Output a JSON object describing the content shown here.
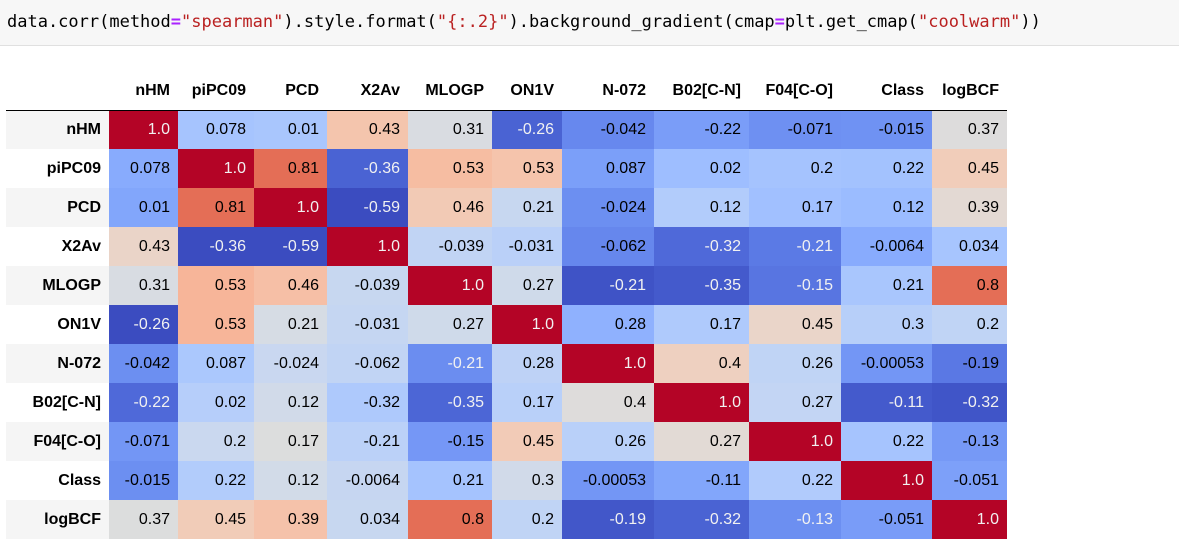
{
  "code_cell": {
    "code": "data.corr(method=\"spearman\").style.format(\"{:.2}\").background_gradient(cmap=plt.get_cmap(\"coolwarm\"))"
  },
  "table": {
    "columns": [
      "nHM",
      "piPC09",
      "PCD",
      "X2Av",
      "MLOGP",
      "ON1V",
      "N-072",
      "B02[C-N]",
      "F04[C-O]",
      "Class",
      "logBCF"
    ],
    "rows": [
      {
        "label": "nHM",
        "cells": [
          {
            "text": "1.0",
            "bg": "#b40426",
            "light": true
          },
          {
            "text": "0.078",
            "bg": "#a6c4fe",
            "light": false
          },
          {
            "text": "0.01",
            "bg": "#a9c6fd",
            "light": false
          },
          {
            "text": "0.43",
            "bg": "#f4c5ad",
            "light": false
          },
          {
            "text": "0.31",
            "bg": "#d9dce1",
            "light": false
          },
          {
            "text": "-0.26",
            "bg": "#4a63d3",
            "light": true
          },
          {
            "text": "-0.042",
            "bg": "#6788ee",
            "light": false
          },
          {
            "text": "-0.22",
            "bg": "#7a9df8",
            "light": false
          },
          {
            "text": "-0.071",
            "bg": "#6e90f2",
            "light": false
          },
          {
            "text": "-0.015",
            "bg": "#6f92f3",
            "light": false
          },
          {
            "text": "0.37",
            "bg": "#dddcdc",
            "light": false
          }
        ]
      },
      {
        "label": "piPC09",
        "cells": [
          {
            "text": "0.078",
            "bg": "#88abfd",
            "light": false
          },
          {
            "text": "1.0",
            "bg": "#b40426",
            "light": true
          },
          {
            "text": "0.81",
            "bg": "#e46e56",
            "light": false
          },
          {
            "text": "-0.36",
            "bg": "#4a63d3",
            "light": true
          },
          {
            "text": "0.53",
            "bg": "#f6bda2",
            "light": false
          },
          {
            "text": "0.53",
            "bg": "#f5c4ac",
            "light": false
          },
          {
            "text": "0.087",
            "bg": "#7b9ff9",
            "light": false
          },
          {
            "text": "0.02",
            "bg": "#9ebeff",
            "light": false
          },
          {
            "text": "0.2",
            "bg": "#a5c3fe",
            "light": false
          },
          {
            "text": "0.22",
            "bg": "#a3c2fe",
            "light": false
          },
          {
            "text": "0.45",
            "bg": "#f1cdba",
            "light": false
          }
        ]
      },
      {
        "label": "PCD",
        "cells": [
          {
            "text": "0.01",
            "bg": "#82a6fb",
            "light": false
          },
          {
            "text": "0.81",
            "bg": "#e46e56",
            "light": false
          },
          {
            "text": "1.0",
            "bg": "#b40426",
            "light": true
          },
          {
            "text": "-0.59",
            "bg": "#3b4cc0",
            "light": true
          },
          {
            "text": "0.46",
            "bg": "#f2cab5",
            "light": false
          },
          {
            "text": "0.21",
            "bg": "#c7d7f0",
            "light": false
          },
          {
            "text": "-0.024",
            "bg": "#6c8ff1",
            "light": false
          },
          {
            "text": "0.12",
            "bg": "#b2ccfb",
            "light": false
          },
          {
            "text": "0.17",
            "bg": "#a1c0ff",
            "light": false
          },
          {
            "text": "0.12",
            "bg": "#9bbcff",
            "light": false
          },
          {
            "text": "0.39",
            "bg": "#e3d9d3",
            "light": false
          }
        ]
      },
      {
        "label": "X2Av",
        "cells": [
          {
            "text": "0.43",
            "bg": "#ead4c8",
            "light": false
          },
          {
            "text": "-0.36",
            "bg": "#3b4cc0",
            "light": true
          },
          {
            "text": "-0.59",
            "bg": "#3b4cc0",
            "light": true
          },
          {
            "text": "1.0",
            "bg": "#b40426",
            "light": true
          },
          {
            "text": "-0.039",
            "bg": "#c1d4f4",
            "light": false
          },
          {
            "text": "-0.031",
            "bg": "#bad0f8",
            "light": false
          },
          {
            "text": "-0.062",
            "bg": "#6687ed",
            "light": false
          },
          {
            "text": "-0.32",
            "bg": "#4f69d9",
            "light": true
          },
          {
            "text": "-0.21",
            "bg": "#5b7ae5",
            "light": true
          },
          {
            "text": "-0.0064",
            "bg": "#88abfd",
            "light": false
          },
          {
            "text": "0.034",
            "bg": "#a7c5fe",
            "light": false
          }
        ]
      },
      {
        "label": "MLOGP",
        "cells": [
          {
            "text": "0.31",
            "bg": "#d8dce2",
            "light": false
          },
          {
            "text": "0.53",
            "bg": "#f7b599",
            "light": false
          },
          {
            "text": "0.46",
            "bg": "#f6bfa6",
            "light": false
          },
          {
            "text": "-0.039",
            "bg": "#c7d7f0",
            "light": false
          },
          {
            "text": "1.0",
            "bg": "#b40426",
            "light": true
          },
          {
            "text": "0.27",
            "bg": "#cfdaea",
            "light": false
          },
          {
            "text": "-0.21",
            "bg": "#3f53c6",
            "light": true
          },
          {
            "text": "-0.35",
            "bg": "#445acc",
            "light": true
          },
          {
            "text": "-0.15",
            "bg": "#5875e1",
            "light": true
          },
          {
            "text": "0.21",
            "bg": "#a9c6fd",
            "light": false
          },
          {
            "text": "0.8",
            "bg": "#e46e56",
            "light": false
          }
        ]
      },
      {
        "label": "ON1V",
        "cells": [
          {
            "text": "-0.26",
            "bg": "#3b4cc0",
            "light": true
          },
          {
            "text": "0.53",
            "bg": "#f7b599",
            "light": false
          },
          {
            "text": "0.21",
            "bg": "#d6dce4",
            "light": false
          },
          {
            "text": "-0.031",
            "bg": "#c5d6f2",
            "light": false
          },
          {
            "text": "0.27",
            "bg": "#cfdaea",
            "light": false
          },
          {
            "text": "1.0",
            "bg": "#b40426",
            "light": true
          },
          {
            "text": "0.28",
            "bg": "#8fb1fe",
            "light": false
          },
          {
            "text": "0.17",
            "bg": "#afcafc",
            "light": false
          },
          {
            "text": "0.45",
            "bg": "#ead5c9",
            "light": false
          },
          {
            "text": "0.3",
            "bg": "#b7cff9",
            "light": false
          },
          {
            "text": "0.2",
            "bg": "#c0d4f5",
            "light": false
          }
        ]
      },
      {
        "label": "N-072",
        "cells": [
          {
            "text": "-0.042",
            "bg": "#6c8ff1",
            "light": false
          },
          {
            "text": "0.087",
            "bg": "#abc8fd",
            "light": false
          },
          {
            "text": "-0.024",
            "bg": "#c9d7f0",
            "light": false
          },
          {
            "text": "-0.062",
            "bg": "#c1d4f4",
            "light": false
          },
          {
            "text": "-0.21",
            "bg": "#6b8df0",
            "light": true
          },
          {
            "text": "0.28",
            "bg": "#bed2f6",
            "light": false
          },
          {
            "text": "1.0",
            "bg": "#b40426",
            "light": true
          },
          {
            "text": "0.4",
            "bg": "#eed0c0",
            "light": false
          },
          {
            "text": "0.26",
            "bg": "#c0d4f5",
            "light": false
          },
          {
            "text": "-0.00053",
            "bg": "#7396f5",
            "light": false
          },
          {
            "text": "-0.19",
            "bg": "#5a78e4",
            "light": false
          }
        ]
      },
      {
        "label": "B02[C-N]",
        "cells": [
          {
            "text": "-0.22",
            "bg": "#4f69d9",
            "light": true
          },
          {
            "text": "0.02",
            "bg": "#b6cefa",
            "light": false
          },
          {
            "text": "0.12",
            "bg": "#d1dae9",
            "light": false
          },
          {
            "text": "-0.32",
            "bg": "#aec9fc",
            "light": false
          },
          {
            "text": "-0.35",
            "bg": "#4c66d6",
            "light": true
          },
          {
            "text": "0.17",
            "bg": "#b9d0f9",
            "light": false
          },
          {
            "text": "0.4",
            "bg": "#dedcdb",
            "light": false
          },
          {
            "text": "1.0",
            "bg": "#b40426",
            "light": true
          },
          {
            "text": "0.27",
            "bg": "#c3d5f4",
            "light": false
          },
          {
            "text": "-0.11",
            "bg": "#445acc",
            "light": true
          },
          {
            "text": "-0.32",
            "bg": "#4055c8",
            "light": true
          }
        ]
      },
      {
        "label": "F04[C-O]",
        "cells": [
          {
            "text": "-0.071",
            "bg": "#7396f5",
            "light": false
          },
          {
            "text": "0.2",
            "bg": "#cad8ef",
            "light": false
          },
          {
            "text": "0.17",
            "bg": "#dcdddd",
            "light": false
          },
          {
            "text": "-0.21",
            "bg": "#bbd1f8",
            "light": false
          },
          {
            "text": "-0.15",
            "bg": "#7597f6",
            "light": false
          },
          {
            "text": "0.45",
            "bg": "#f2cbb7",
            "light": false
          },
          {
            "text": "0.26",
            "bg": "#b9d0f9",
            "light": false
          },
          {
            "text": "0.27",
            "bg": "#e2dad5",
            "light": false
          },
          {
            "text": "1.0",
            "bg": "#b40426",
            "light": true
          },
          {
            "text": "0.22",
            "bg": "#a6c4fe",
            "light": false
          },
          {
            "text": "-0.13",
            "bg": "#7699f6",
            "light": false
          }
        ]
      },
      {
        "label": "Class",
        "cells": [
          {
            "text": "-0.015",
            "bg": "#6c8ff1",
            "light": false
          },
          {
            "text": "0.22",
            "bg": "#b2ccfb",
            "light": false
          },
          {
            "text": "0.12",
            "bg": "#d2dbe8",
            "light": false
          },
          {
            "text": "-0.0064",
            "bg": "#c6d6f1",
            "light": false
          },
          {
            "text": "0.21",
            "bg": "#a5c3fe",
            "light": false
          },
          {
            "text": "0.3",
            "bg": "#d1dae9",
            "light": false
          },
          {
            "text": "-0.00053",
            "bg": "#7396f5",
            "light": false
          },
          {
            "text": "-0.11",
            "bg": "#82a6fb",
            "light": false
          },
          {
            "text": "0.22",
            "bg": "#b1cbfc",
            "light": false
          },
          {
            "text": "1.0",
            "bg": "#b40426",
            "light": true
          },
          {
            "text": "-0.051",
            "bg": "#7da0f9",
            "light": false
          }
        ]
      },
      {
        "label": "logBCF",
        "cells": [
          {
            "text": "0.37",
            "bg": "#dcdddd",
            "light": false
          },
          {
            "text": "0.45",
            "bg": "#f1ccb8",
            "light": false
          },
          {
            "text": "0.39",
            "bg": "#f5c2aa",
            "light": false
          },
          {
            "text": "0.034",
            "bg": "#c7d7f0",
            "light": false
          },
          {
            "text": "0.8",
            "bg": "#e46e56",
            "light": false
          },
          {
            "text": "0.2",
            "bg": "#c0d4f5",
            "light": false
          },
          {
            "text": "-0.19",
            "bg": "#4257c9",
            "light": true
          },
          {
            "text": "-0.32",
            "bg": "#4a63d3",
            "light": true
          },
          {
            "text": "-0.13",
            "bg": "#6c8ff1",
            "light": true
          },
          {
            "text": "-0.051",
            "bg": "#799cf8",
            "light": false
          },
          {
            "text": "1.0",
            "bg": "#b40426",
            "light": true
          }
        ]
      }
    ]
  }
}
